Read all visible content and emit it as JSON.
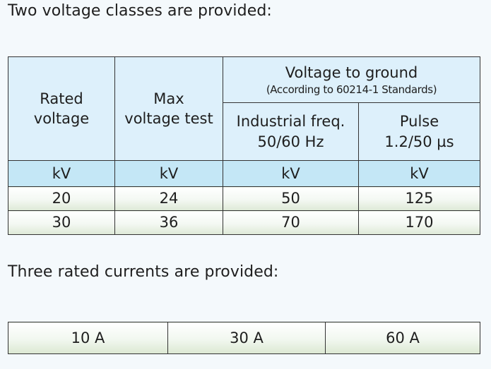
{
  "voltage_section": {
    "heading": "Two voltage classes are provided:",
    "columns": {
      "rated_voltage": [
        "Rated",
        "voltage"
      ],
      "max_voltage_test": [
        "Max",
        "voltage test"
      ],
      "voltage_to_ground": {
        "title": "Voltage to ground",
        "subtitle": "(According to 60214-1 Standards)",
        "industrial_freq": [
          "Industrial freq.",
          "50/60 Hz"
        ],
        "pulse": [
          "Pulse",
          "1.2/50 µs"
        ]
      }
    },
    "units": [
      "kV",
      "kV",
      "kV",
      "kV"
    ],
    "rows": [
      [
        "20",
        "24",
        "50",
        "125"
      ],
      [
        "30",
        "36",
        "70",
        "170"
      ]
    ]
  },
  "current_section": {
    "heading": "Three rated currents are provided:",
    "values": [
      "10 A",
      "30 A",
      "60 A"
    ]
  }
}
